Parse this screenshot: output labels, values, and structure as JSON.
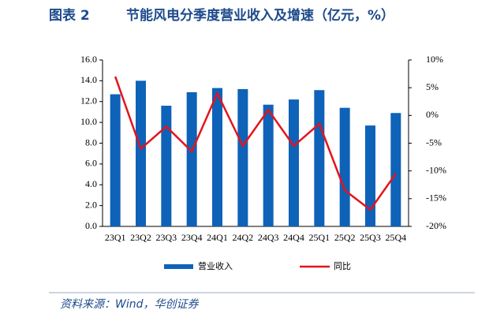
{
  "figure_label": "图表 2",
  "chart_data": {
    "type": "bar_line",
    "title": "节能风电分季度营业收入及增速（亿元，%）",
    "categories": [
      "23Q1",
      "23Q2",
      "23Q3",
      "23Q4",
      "24Q1",
      "24Q2",
      "24Q3",
      "24Q4",
      "25Q1",
      "25Q2",
      "25Q3",
      "25Q4"
    ],
    "series": [
      {
        "name": "营业收入",
        "type": "bar",
        "color": "#0e62b8",
        "values": [
          12.7,
          14.0,
          11.6,
          12.9,
          13.3,
          13.2,
          11.7,
          12.2,
          13.1,
          11.4,
          9.7,
          10.9
        ]
      },
      {
        "name": "同比",
        "type": "line",
        "axis": "y2",
        "color": "#e3141c",
        "values": [
          7,
          -6,
          -2,
          -6.5,
          4,
          -5.5,
          1,
          -5.5,
          -1.5,
          -13.5,
          -17,
          -10.5
        ]
      }
    ],
    "ylim": [
      0,
      16
    ],
    "yticks": [
      {
        "value": 0,
        "label": "0.0"
      },
      {
        "value": 2,
        "label": "2.0"
      },
      {
        "value": 4,
        "label": "4.0"
      },
      {
        "value": 6,
        "label": "6.0"
      },
      {
        "value": 8,
        "label": "8.0"
      },
      {
        "value": 10,
        "label": "10.0"
      },
      {
        "value": 12,
        "label": "12.0"
      },
      {
        "value": 14,
        "label": "14.0"
      },
      {
        "value": 16,
        "label": "16.0"
      }
    ],
    "y2lim": [
      -20,
      10
    ],
    "y2ticks": [
      {
        "value": -20,
        "label": "-20%"
      },
      {
        "value": -15,
        "label": "-15%"
      },
      {
        "value": -10,
        "label": "-10%"
      },
      {
        "value": -5,
        "label": "-5%"
      },
      {
        "value": 0,
        "label": "0%"
      },
      {
        "value": 5,
        "label": "5%"
      },
      {
        "value": 10,
        "label": "10%"
      }
    ],
    "legend": "bottom"
  },
  "source": "资料来源：Wind，华创证券"
}
